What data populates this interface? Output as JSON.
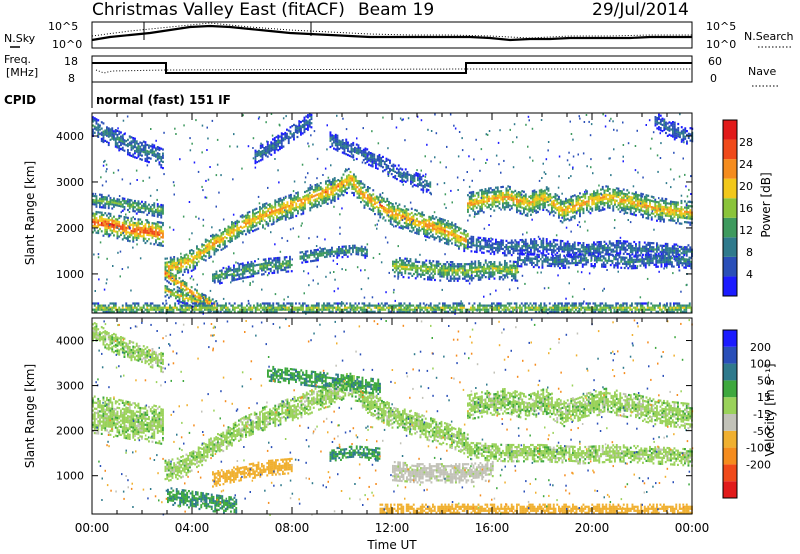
{
  "header": {
    "title": "Christmas Valley East (fitACF)",
    "beam": "Beam 19",
    "date": "29/Jul/2014",
    "cpid_label": "CPID",
    "cpid_value": "normal (fast) 151 IF"
  },
  "noise_panel": {
    "left_label": "N.Sky",
    "left_ticks": [
      "10^5",
      "10^0"
    ],
    "right_label": "N.Search",
    "right_ticks": [
      "10^5",
      "10^0"
    ]
  },
  "freq_panel": {
    "left_label": [
      "Freq.",
      "[MHz]"
    ],
    "left_ticks": [
      "18",
      "8"
    ],
    "right_label": "Nave",
    "right_ticks": [
      "60",
      "0"
    ]
  },
  "xaxis": {
    "label": "Time UT",
    "ticks": [
      "00:00",
      "04:00",
      "08:00",
      "12:00",
      "16:00",
      "20:00",
      "00:00"
    ]
  },
  "colors": {
    "power": [
      "#1c1cff",
      "#2a4fb8",
      "#2f7a8c",
      "#3e9a5e",
      "#8ac43a",
      "#f2c81a",
      "#f58c1e",
      "#f04a1a",
      "#e11a1a"
    ],
    "velocity": [
      "#e11a1a",
      "#f04a1a",
      "#f58c1e",
      "#f0b030",
      "#c2c2b8",
      "#9ad25a",
      "#3ea83e",
      "#2f7a8c",
      "#2a4fb8",
      "#1c1cff"
    ]
  },
  "chart_data": [
    {
      "type": "heatmap",
      "name": "power",
      "ylabel": "Slant Range [km]",
      "yticks": [
        1000,
        2000,
        3000,
        4000
      ],
      "ylim": [
        150,
        4500
      ],
      "xlim_hours": [
        0,
        24
      ],
      "colorbar": {
        "label": "Power [dB]",
        "ticks": [
          4,
          8,
          12,
          16,
          20,
          24,
          28
        ],
        "range": [
          0,
          32
        ]
      },
      "bands": [
        {
          "t": [
            0.0,
            0.7,
            1.5,
            2.3,
            2.8
          ],
          "r": [
            2100,
            2050,
            1950,
            1900,
            1850
          ],
          "w": 260,
          "p": 27
        },
        {
          "t": [
            0.0,
            0.8,
            1.6,
            2.4,
            2.8
          ],
          "r": [
            2600,
            2550,
            2450,
            2400,
            2350
          ],
          "w": 150,
          "p": 15
        },
        {
          "t": [
            0.0,
            0.8,
            1.6,
            2.4,
            2.8
          ],
          "r": [
            4200,
            3950,
            3750,
            3600,
            3500
          ],
          "w": 220,
          "p": 10
        },
        {
          "t": [
            2.9,
            3.4,
            4.0,
            4.6,
            5.3,
            6.0,
            6.8
          ],
          "r": [
            1100,
            1150,
            1300,
            1550,
            1800,
            2050,
            2250
          ],
          "w": 240,
          "p": 22
        },
        {
          "t": [
            2.9,
            3.5,
            4.0,
            4.5,
            5.0
          ],
          "r": [
            1000,
            750,
            550,
            380,
            250
          ],
          "w": 150,
          "p": 25
        },
        {
          "t": [
            2.9,
            3.5,
            4.0,
            4.5
          ],
          "r": [
            620,
            500,
            400,
            300
          ],
          "w": 130,
          "p": 20
        },
        {
          "t": [
            6.8,
            7.6,
            8.4,
            9.0,
            9.6,
            10.3,
            10.8,
            11.4,
            12.0,
            12.8,
            13.6,
            14.4,
            15.0
          ],
          "r": [
            2250,
            2400,
            2550,
            2700,
            2800,
            3050,
            2700,
            2500,
            2300,
            2150,
            2000,
            1850,
            1700
          ],
          "w": 260,
          "p": 23
        },
        {
          "t": [
            4.8,
            6.0,
            7.0,
            8.0
          ],
          "r": [
            900,
            1050,
            1150,
            1200
          ],
          "w": 160,
          "p": 14
        },
        {
          "t": [
            6.5,
            7.2,
            8.0,
            8.8
          ],
          "r": [
            3550,
            3750,
            4050,
            4350
          ],
          "w": 160,
          "p": 9
        },
        {
          "t": [
            9.5,
            10.5,
            11.5,
            12.5,
            13.5
          ],
          "r": [
            3900,
            3650,
            3400,
            3100,
            2900
          ],
          "w": 160,
          "p": 9
        },
        {
          "t": [
            8.3,
            9.5,
            10.5,
            11.0
          ],
          "r": [
            1350,
            1450,
            1500,
            1450
          ],
          "w": 130,
          "p": 12
        },
        {
          "t": [
            12.0,
            13.0,
            14.0,
            15.0,
            16.0,
            17.0
          ],
          "r": [
            1150,
            1100,
            1050,
            1050,
            1100,
            1050
          ],
          "w": 220,
          "p": 17
        },
        {
          "t": [
            15.0,
            15.8,
            16.6,
            17.4,
            18.1,
            18.8,
            19.5,
            20.5,
            21.5,
            22.5,
            24.0
          ],
          "r": [
            2500,
            2600,
            2650,
            2500,
            2650,
            2350,
            2500,
            2650,
            2550,
            2400,
            2300
          ],
          "w": 260,
          "p": 22
        },
        {
          "t": [
            15.0,
            16.5,
            18.0,
            19.5,
            21.0,
            22.5,
            24.0
          ],
          "r": [
            1650,
            1550,
            1600,
            1500,
            1550,
            1500,
            1450
          ],
          "w": 170,
          "p": 9
        },
        {
          "t": [
            17.0,
            18.5,
            20.0,
            21.5,
            23.0,
            24.0
          ],
          "r": [
            1300,
            1250,
            1300,
            1250,
            1300,
            1250
          ],
          "w": 150,
          "p": 10
        },
        {
          "t": [
            22.5,
            23.2,
            24.0
          ],
          "r": [
            4300,
            4100,
            3950
          ],
          "w": 180,
          "p": 8
        },
        {
          "t": [
            0.0,
            4.0,
            8.0,
            12.0,
            16.0,
            20.0,
            24.0
          ],
          "r": [
            230,
            230,
            230,
            230,
            230,
            230,
            230
          ],
          "w": 120,
          "p": 18
        }
      ]
    },
    {
      "type": "heatmap",
      "name": "velocity",
      "ylabel": "Slant Range [km]",
      "yticks": [
        1000,
        2000,
        3000,
        4000
      ],
      "ylim": [
        150,
        4500
      ],
      "xlim_hours": [
        0,
        24
      ],
      "colorbar": {
        "label": "Velocity [m s⁻¹]",
        "ticks": [
          200,
          100,
          50,
          15,
          -15,
          -50,
          -100,
          -200
        ]
      },
      "bands": [
        {
          "t": [
            0.0,
            0.8,
            1.6,
            2.4,
            2.8
          ],
          "r": [
            2350,
            2300,
            2200,
            2150,
            2100
          ],
          "w": 420,
          "v": 0
        },
        {
          "t": [
            0.0,
            0.8,
            1.6,
            2.4,
            2.8
          ],
          "r": [
            4200,
            3950,
            3750,
            3600,
            3500
          ],
          "w": 220,
          "v": 0
        },
        {
          "t": [
            2.9,
            3.4,
            4.0,
            4.6,
            5.3,
            6.0,
            6.8
          ],
          "r": [
            1100,
            1150,
            1300,
            1550,
            1800,
            2050,
            2250
          ],
          "w": 240,
          "v": 0
        },
        {
          "t": [
            3.0,
            3.8,
            4.5,
            5.2,
            5.8
          ],
          "r": [
            550,
            480,
            420,
            360,
            320
          ],
          "w": 200,
          "v": 45
        },
        {
          "t": [
            6.8,
            7.6,
            8.4,
            9.0,
            9.6,
            10.3,
            10.8,
            11.4,
            12.0,
            12.8,
            13.6,
            14.4,
            15.0
          ],
          "r": [
            2250,
            2400,
            2550,
            2700,
            2800,
            3050,
            2700,
            2500,
            2300,
            2150,
            2000,
            1850,
            1700
          ],
          "w": 260,
          "v": 0
        },
        {
          "t": [
            4.8,
            6.0,
            7.0,
            8.0
          ],
          "r": [
            900,
            1050,
            1150,
            1200
          ],
          "w": 160,
          "v": -70
        },
        {
          "t": [
            9.5,
            10.5,
            11.5
          ],
          "r": [
            1450,
            1500,
            1450
          ],
          "w": 140,
          "v": 50
        },
        {
          "t": [
            7.0,
            8.5,
            10.0,
            11.5
          ],
          "r": [
            3250,
            3150,
            3050,
            2950
          ],
          "w": 160,
          "v": 40
        },
        {
          "t": [
            12.0,
            13.0,
            14.0,
            15.0,
            16.0
          ],
          "r": [
            1100,
            1050,
            1050,
            1050,
            1100
          ],
          "w": 220,
          "v": -30
        },
        {
          "t": [
            15.0,
            15.8,
            16.6,
            17.4,
            18.1,
            18.8,
            19.5,
            20.5,
            21.5,
            22.5,
            24.0
          ],
          "r": [
            2500,
            2600,
            2650,
            2500,
            2650,
            2350,
            2500,
            2650,
            2550,
            2400,
            2300
          ],
          "w": 280,
          "v": 0
        },
        {
          "t": [
            15.0,
            16.5,
            18.0,
            19.5,
            21.0,
            22.5,
            24.0
          ],
          "r": [
            1550,
            1500,
            1500,
            1450,
            1500,
            1450,
            1400
          ],
          "w": 200,
          "v": 0
        },
        {
          "t": [
            11.5,
            13.0,
            14.5,
            16.0,
            17.5,
            19.0,
            21.0,
            24.0
          ],
          "r": [
            230,
            230,
            230,
            230,
            230,
            230,
            230,
            230
          ],
          "w": 120,
          "v": -70
        }
      ]
    }
  ]
}
